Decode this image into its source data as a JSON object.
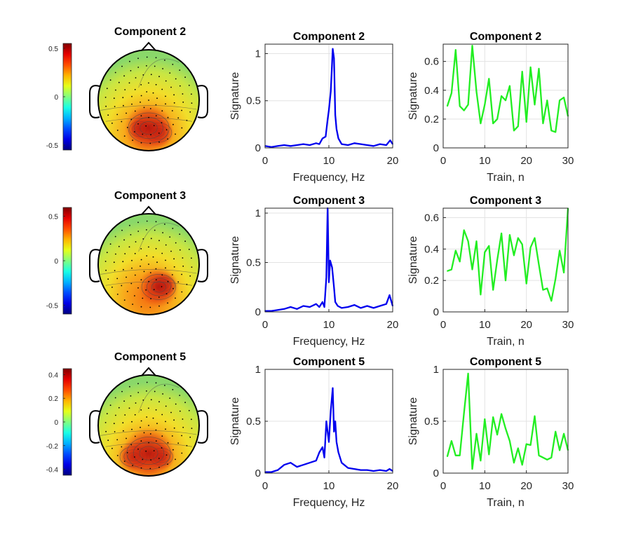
{
  "colors": {
    "spectrum_line": "#0000ee",
    "train_line": "#22ee22",
    "grid": "#e3e3e3",
    "axis": "#262626"
  },
  "rows": [
    {
      "topo": {
        "title": "Component 2",
        "colorbar_ticks": [
          "0.5",
          "0",
          "-0.5"
        ],
        "clim": [
          -0.55,
          0.55
        ],
        "blobs": [
          [
            -0.18,
            -0.57,
            0.15
          ],
          [
            0.2,
            -0.64,
            0.19
          ],
          [
            0.0,
            -0.55,
            0.3
          ]
        ]
      },
      "spectrum": {
        "type": "line",
        "title": "Component 2",
        "xlabel": "Frequency, Hz",
        "ylabel": "Signature",
        "xlim": [
          0,
          20
        ],
        "ylim": [
          0,
          1.1
        ],
        "xticks": [
          "0",
          "10",
          "20"
        ],
        "yticks": [
          "0",
          "0.5",
          "1"
        ],
        "x": [
          0,
          1,
          2,
          3,
          4,
          5,
          6,
          7,
          8,
          8.5,
          9,
          9.5,
          9.8,
          10,
          10.3,
          10.6,
          10.8,
          11,
          11.2,
          11.5,
          12,
          13,
          14,
          15,
          16,
          17,
          18,
          19,
          19.6,
          20
        ],
        "y": [
          0.02,
          0.01,
          0.02,
          0.03,
          0.02,
          0.03,
          0.04,
          0.03,
          0.05,
          0.04,
          0.1,
          0.12,
          0.3,
          0.4,
          0.6,
          1.05,
          0.95,
          0.35,
          0.2,
          0.1,
          0.04,
          0.03,
          0.05,
          0.04,
          0.03,
          0.02,
          0.04,
          0.03,
          0.08,
          0.04
        ]
      },
      "train": {
        "type": "line",
        "title": "Component 2",
        "xlabel": "Train, n",
        "ylabel": "Signature",
        "xlim": [
          0,
          30
        ],
        "ylim": [
          0,
          0.72
        ],
        "xticks": [
          "0",
          "10",
          "20",
          "30"
        ],
        "yticks": [
          "0",
          "0.2",
          "0.4",
          "0.6"
        ],
        "x": [
          1,
          2,
          3,
          4,
          5,
          6,
          7,
          8,
          9,
          10,
          11,
          12,
          13,
          14,
          15,
          16,
          17,
          18,
          19,
          20,
          21,
          22,
          23,
          24,
          25,
          26,
          27,
          28,
          29,
          30
        ],
        "y": [
          0.29,
          0.38,
          0.68,
          0.29,
          0.26,
          0.3,
          0.71,
          0.39,
          0.17,
          0.3,
          0.48,
          0.17,
          0.2,
          0.36,
          0.33,
          0.43,
          0.12,
          0.15,
          0.53,
          0.18,
          0.56,
          0.3,
          0.55,
          0.17,
          0.33,
          0.12,
          0.11,
          0.33,
          0.35,
          0.22
        ]
      }
    },
    {
      "topo": {
        "title": "Component 3",
        "colorbar_ticks": [
          "0.5",
          "0",
          "-0.5"
        ],
        "clim": [
          -0.6,
          0.6
        ],
        "blobs": [
          [
            0.3,
            -0.42,
            0.16
          ],
          [
            0.2,
            -0.45,
            0.25
          ]
        ]
      },
      "spectrum": {
        "type": "line",
        "title": "Component 3",
        "xlabel": "Frequency, Hz",
        "ylabel": "Signature",
        "xlim": [
          0,
          20
        ],
        "ylim": [
          0,
          1.05
        ],
        "xticks": [
          "0",
          "10",
          "20"
        ],
        "yticks": [
          "0",
          "0.5",
          "1"
        ],
        "x": [
          0,
          1,
          2,
          3,
          4,
          5,
          6,
          7,
          8,
          8.5,
          9,
          9.3,
          9.6,
          9.8,
          10,
          10.2,
          10.5,
          10.8,
          11,
          11.4,
          12,
          13,
          14,
          15,
          16,
          17,
          18,
          19,
          19.5,
          20
        ],
        "y": [
          0.01,
          0.01,
          0.02,
          0.03,
          0.05,
          0.03,
          0.06,
          0.05,
          0.08,
          0.05,
          0.1,
          0.05,
          0.35,
          1.05,
          0.3,
          0.52,
          0.45,
          0.25,
          0.1,
          0.06,
          0.04,
          0.05,
          0.07,
          0.04,
          0.06,
          0.04,
          0.06,
          0.08,
          0.17,
          0.06
        ]
      },
      "train": {
        "type": "line",
        "title": "Component 3",
        "xlabel": "Train, n",
        "ylabel": "Signature",
        "xlim": [
          0,
          30
        ],
        "ylim": [
          0,
          0.66
        ],
        "xticks": [
          "0",
          "10",
          "20",
          "30"
        ],
        "yticks": [
          "0",
          "0.2",
          "0.4",
          "0.6"
        ],
        "x": [
          1,
          2,
          3,
          4,
          5,
          6,
          7,
          8,
          9,
          10,
          11,
          12,
          13,
          14,
          15,
          16,
          17,
          18,
          19,
          20,
          21,
          22,
          23,
          24,
          25,
          26,
          27,
          28,
          29,
          30
        ],
        "y": [
          0.26,
          0.27,
          0.39,
          0.32,
          0.52,
          0.45,
          0.27,
          0.45,
          0.11,
          0.38,
          0.42,
          0.14,
          0.33,
          0.5,
          0.2,
          0.49,
          0.36,
          0.47,
          0.43,
          0.18,
          0.41,
          0.47,
          0.3,
          0.14,
          0.15,
          0.07,
          0.21,
          0.39,
          0.25,
          0.66
        ]
      }
    },
    {
      "topo": {
        "title": "Component 5",
        "colorbar_ticks": [
          "0.4",
          "0.2",
          "0",
          "-0.2",
          "-0.4"
        ],
        "clim": [
          -0.45,
          0.45
        ],
        "blobs": [
          [
            -0.3,
            -0.62,
            0.2
          ],
          [
            0.25,
            -0.62,
            0.17
          ],
          [
            0.0,
            -0.55,
            0.32
          ]
        ]
      },
      "spectrum": {
        "type": "line",
        "title": "Component 5",
        "xlabel": "Frequency, Hz",
        "ylabel": "Signature",
        "xlim": [
          0,
          20
        ],
        "ylim": [
          0,
          1
        ],
        "xticks": [
          "0",
          "10",
          "20"
        ],
        "yticks": [
          "0",
          "0.5",
          "1"
        ],
        "x": [
          0,
          1,
          2,
          3,
          4,
          5,
          6,
          7,
          8,
          8.5,
          9,
          9.3,
          9.6,
          10,
          10.3,
          10.6,
          10.8,
          11,
          11.2,
          11.5,
          12,
          13,
          14,
          15,
          16,
          17,
          18,
          19,
          19.5,
          20
        ],
        "y": [
          0.01,
          0.01,
          0.03,
          0.08,
          0.1,
          0.06,
          0.08,
          0.1,
          0.12,
          0.2,
          0.25,
          0.15,
          0.5,
          0.3,
          0.6,
          0.82,
          0.4,
          0.5,
          0.3,
          0.2,
          0.1,
          0.05,
          0.04,
          0.03,
          0.03,
          0.02,
          0.03,
          0.02,
          0.04,
          0.02
        ]
      },
      "train": {
        "type": "line",
        "title": "Component 5",
        "xlabel": "Train, n",
        "ylabel": "Signature",
        "xlim": [
          0,
          30
        ],
        "ylim": [
          0,
          1
        ],
        "xticks": [
          "0",
          "10",
          "20",
          "30"
        ],
        "yticks": [
          "0",
          "0.5",
          "1"
        ],
        "x": [
          1,
          2,
          3,
          4,
          5,
          6,
          7,
          8,
          9,
          10,
          11,
          12,
          13,
          14,
          15,
          16,
          17,
          18,
          19,
          20,
          21,
          22,
          23,
          24,
          25,
          26,
          27,
          28,
          29,
          30
        ],
        "y": [
          0.16,
          0.31,
          0.17,
          0.17,
          0.58,
          0.96,
          0.04,
          0.38,
          0.12,
          0.52,
          0.18,
          0.54,
          0.37,
          0.57,
          0.43,
          0.31,
          0.1,
          0.24,
          0.08,
          0.28,
          0.27,
          0.55,
          0.17,
          0.15,
          0.13,
          0.15,
          0.4,
          0.22,
          0.38,
          0.22
        ]
      }
    }
  ]
}
